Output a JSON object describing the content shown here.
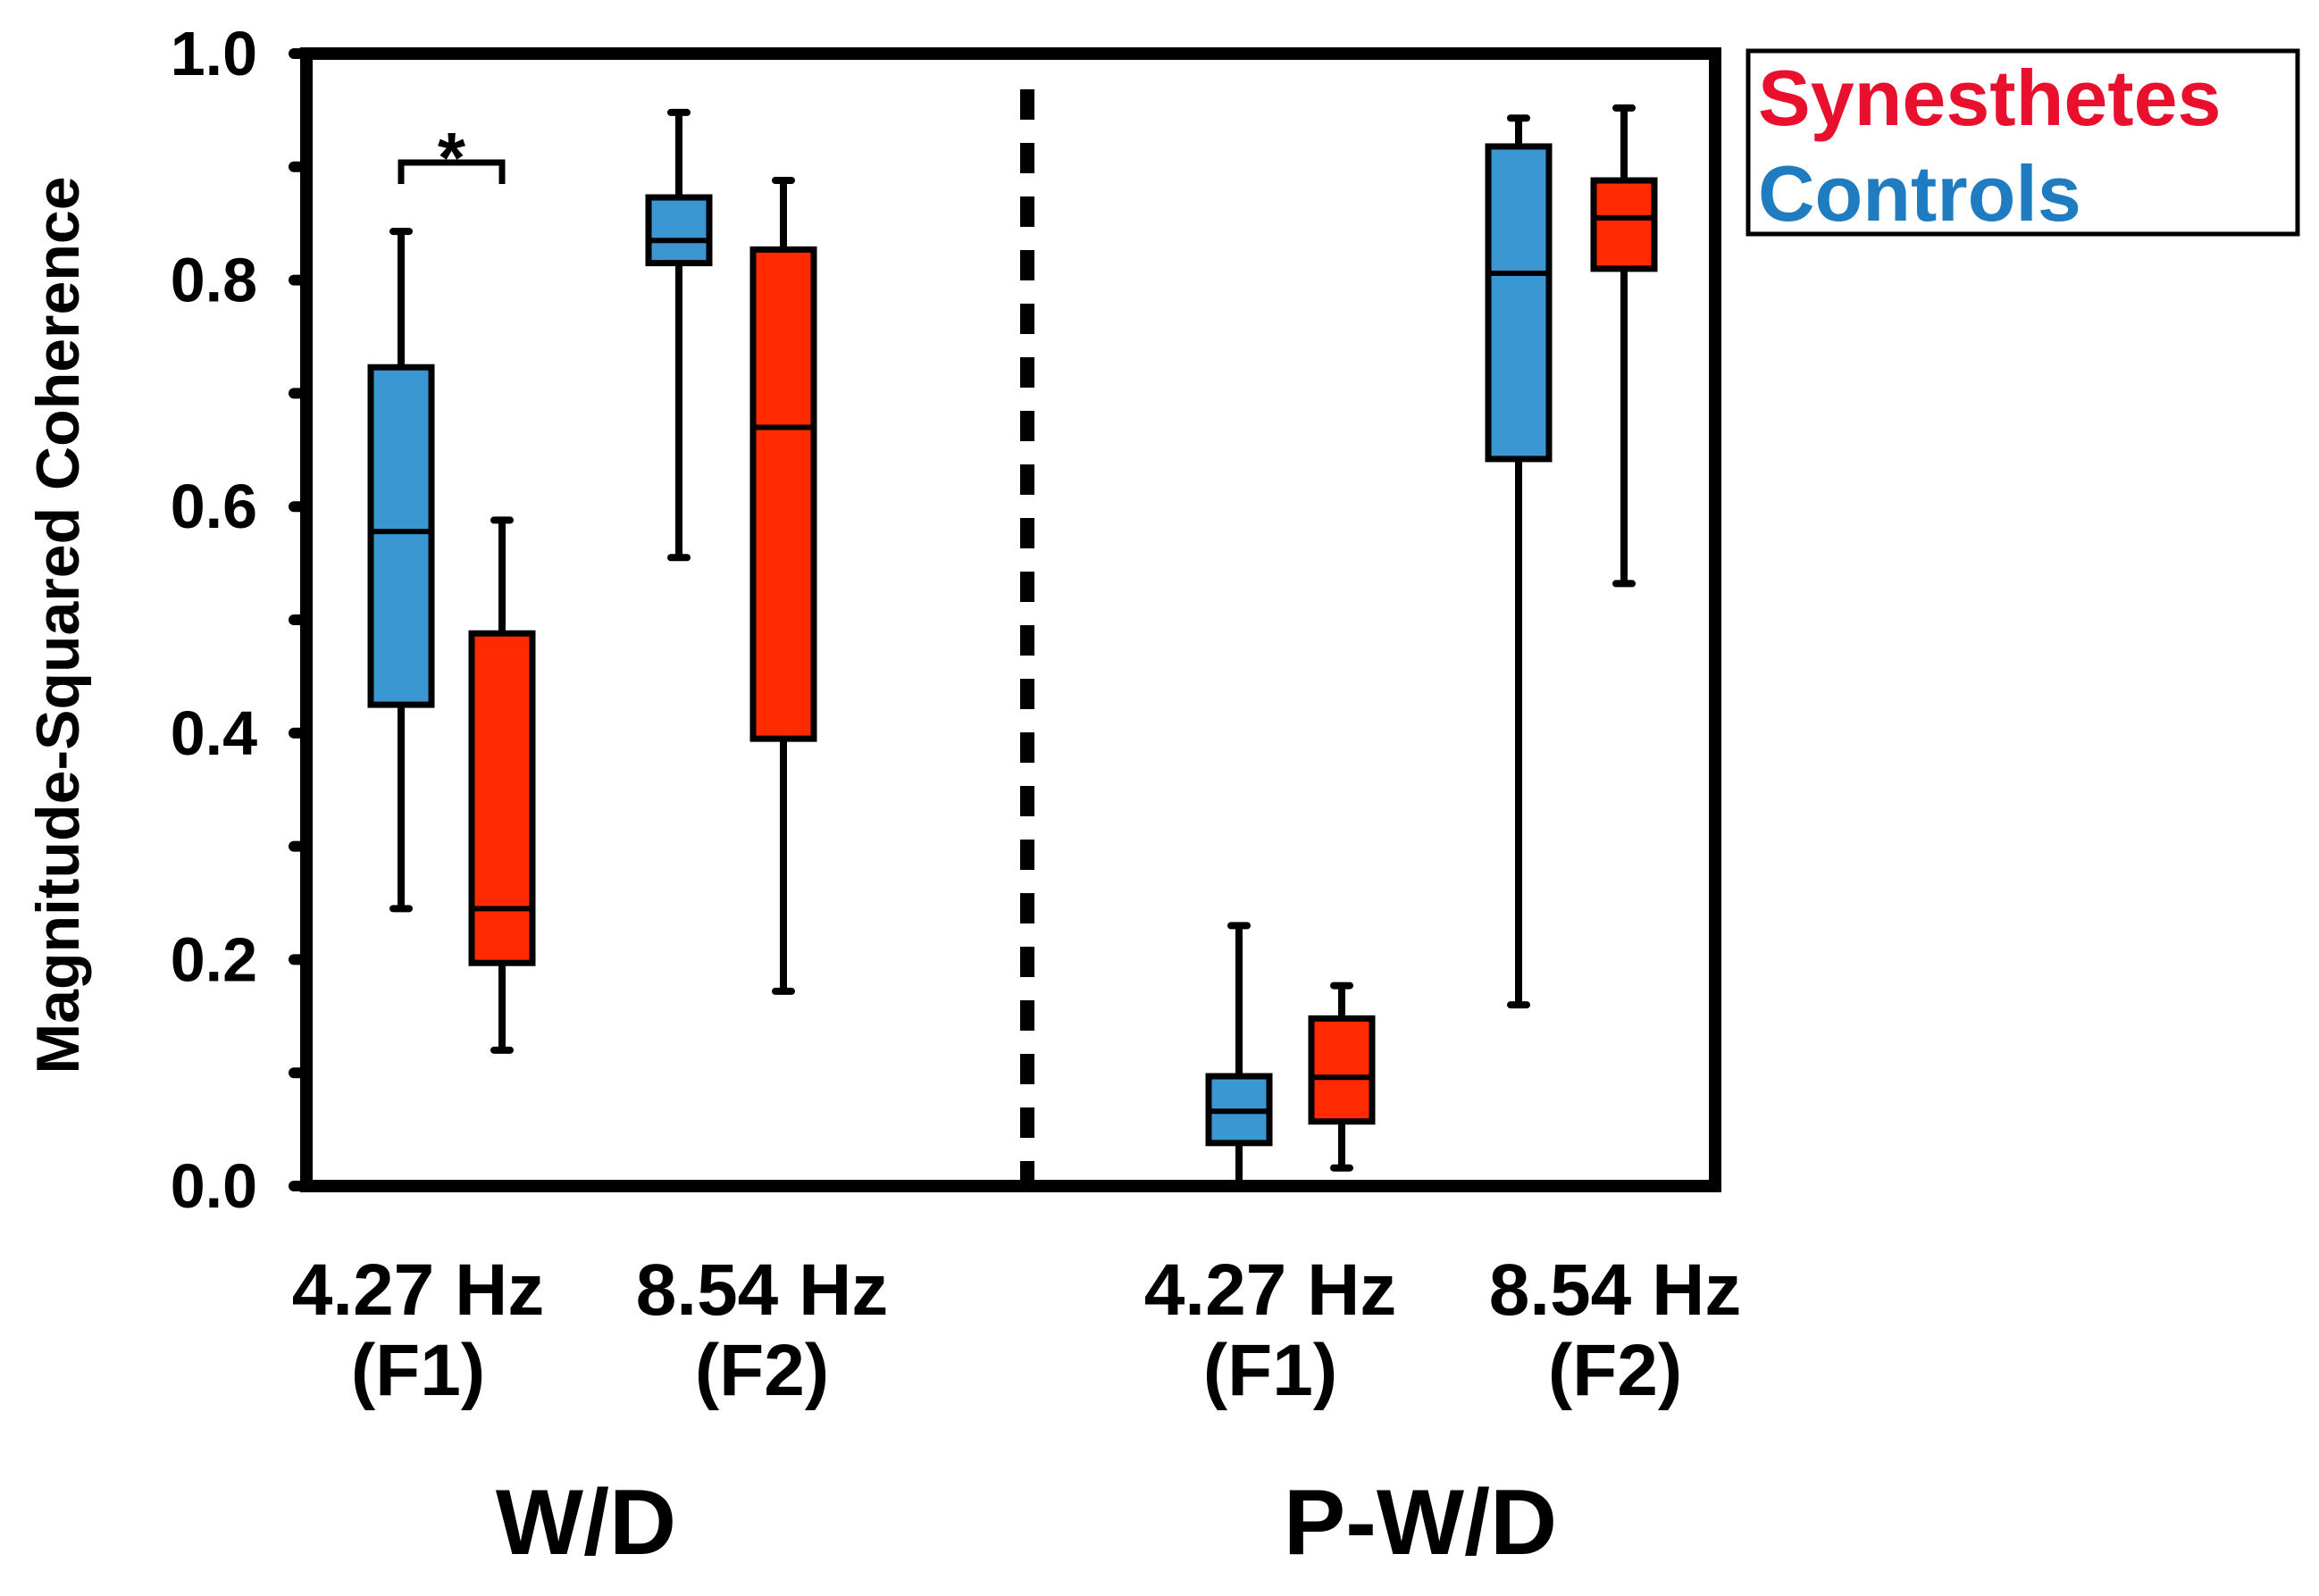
{
  "chart_data": {
    "type": "box",
    "ylabel": "Magnitude-Squared Coherence",
    "ylim": [
      0.0,
      1.0
    ],
    "y_tick_labels": [
      "0.0",
      "0.2",
      "0.4",
      "0.6",
      "0.8",
      "1.0"
    ],
    "y_tick_values": [
      0.0,
      0.2,
      0.4,
      0.6,
      0.8,
      1.0
    ],
    "y_minor_ticks": [
      0.1,
      0.3,
      0.5,
      0.7,
      0.9
    ],
    "groups": [
      {
        "label": "W/D",
        "categories": [
          {
            "label_line1": "4.27 Hz",
            "label_line2": "(F1)",
            "boxes": [
              {
                "series": "Controls",
                "min": 0.245,
                "q1": 0.425,
                "median": 0.578,
                "q3": 0.723,
                "max": 0.843
              },
              {
                "series": "Synesthetes",
                "min": 0.12,
                "q1": 0.197,
                "median": 0.245,
                "q3": 0.488,
                "max": 0.588
              }
            ],
            "significance": "*"
          },
          {
            "label_line1": "8.54 Hz",
            "label_line2": "(F2)",
            "boxes": [
              {
                "series": "Controls",
                "min": 0.555,
                "q1": 0.815,
                "median": 0.835,
                "q3": 0.873,
                "max": 0.948
              },
              {
                "series": "Synesthetes",
                "min": 0.172,
                "q1": 0.395,
                "median": 0.67,
                "q3": 0.827,
                "max": 0.888
              }
            ]
          }
        ]
      },
      {
        "label": "P-W/D",
        "categories": [
          {
            "label_line1": "4.27 Hz",
            "label_line2": "(F1)",
            "boxes": [
              {
                "series": "Controls",
                "min": 0.0,
                "q1": 0.038,
                "median": 0.066,
                "q3": 0.097,
                "max": 0.23
              },
              {
                "series": "Synesthetes",
                "min": 0.016,
                "q1": 0.057,
                "median": 0.096,
                "q3": 0.148,
                "max": 0.177
              }
            ]
          },
          {
            "label_line1": "8.54 Hz",
            "label_line2": "(F2)",
            "boxes": [
              {
                "series": "Controls",
                "min": 0.16,
                "q1": 0.642,
                "median": 0.806,
                "q3": 0.918,
                "max": 0.943
              },
              {
                "series": "Synesthetes",
                "min": 0.532,
                "q1": 0.81,
                "median": 0.855,
                "q3": 0.888,
                "max": 0.952
              }
            ]
          }
        ]
      }
    ],
    "legend": [
      {
        "label": "Synesthetes",
        "color": "#E8102C"
      },
      {
        "label": "Controls",
        "color": "#1F7CC1"
      }
    ],
    "legend_position": "top-right",
    "series_fill": {
      "Controls": "#3A97D2",
      "Synesthetes": "#FF2A00"
    }
  }
}
